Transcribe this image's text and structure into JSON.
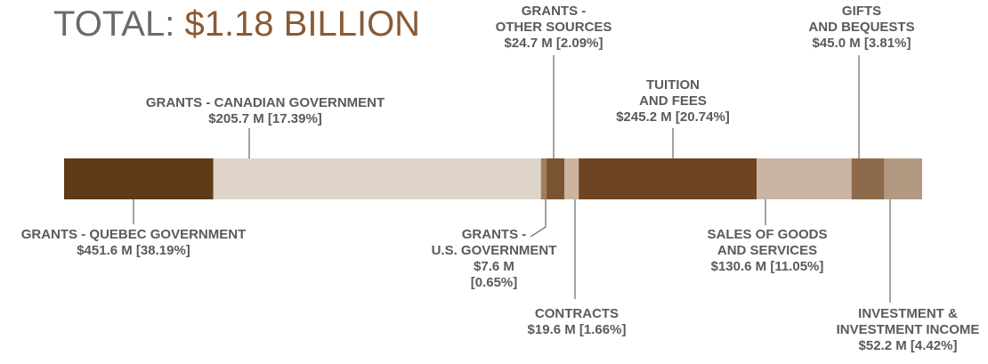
{
  "chart_data": {
    "type": "stacked_bar",
    "title_prefix": "TOTAL:",
    "title": "$1.18 BILLION",
    "xlim": [
      0,
      100
    ],
    "categories": [
      [
        "GRANTS - CANADIAN GOVERNMENT"
      ],
      [
        "GRANTS - QUEBEC GOVERNMENT"
      ],
      [
        "GRANTS -",
        "U.S. GOVERNMENT"
      ],
      [
        "GRANTS -",
        "OTHER SOURCES"
      ],
      [
        "CONTRACTS"
      ],
      [
        "TUITION",
        "AND FEES"
      ],
      [
        "SALES OF GOODS",
        "AND SERVICES"
      ],
      [
        "GIFTS",
        "AND BEQUESTS"
      ],
      [
        "INVESTMENT &",
        "INVESTMENT INCOME"
      ]
    ],
    "values": [
      17.39,
      38.19,
      0.65,
      2.09,
      1.66,
      20.74,
      11.05,
      3.81,
      4.42
    ],
    "value_labels": [
      [
        "$205.7 M [17.39%]"
      ],
      [
        "$451.6 M [38.19%]"
      ],
      [
        "$7.6 M",
        "[0.65%]"
      ],
      [
        "$24.7 M  [2.09%]"
      ],
      [
        "$19.6 M [1.66%]"
      ],
      [
        "$245.2 M [20.74%]"
      ],
      [
        "$130.6 M [11.05%]"
      ],
      [
        "$45.0 M [3.81%]"
      ],
      [
        "$52.2 M [4.42%]"
      ]
    ],
    "colors": [
      "#5e3a17",
      "#dfd4c9",
      "#a27e5e",
      "#7b5434",
      "#cbb4a0",
      "#6e4522",
      "#cbb4a4",
      "#8e6a4c",
      "#b29a82"
    ]
  }
}
